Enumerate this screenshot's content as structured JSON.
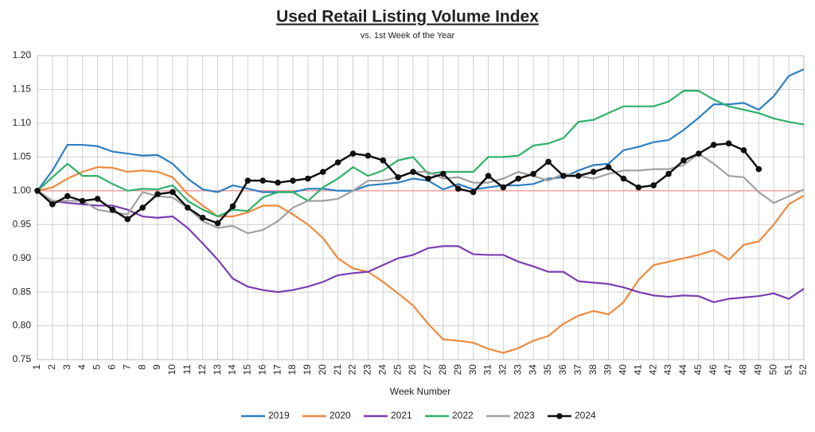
{
  "chart_data": {
    "type": "line",
    "title": "Used Retail Listing Volume Index",
    "subtitle": "vs. 1st Week of the Year",
    "x_label": "Week Number",
    "x": [
      1,
      2,
      3,
      4,
      5,
      6,
      7,
      8,
      9,
      10,
      11,
      12,
      13,
      14,
      15,
      16,
      17,
      18,
      19,
      20,
      21,
      22,
      23,
      24,
      25,
      26,
      27,
      28,
      29,
      30,
      31,
      32,
      33,
      34,
      35,
      36,
      37,
      38,
      39,
      40,
      41,
      42,
      43,
      44,
      45,
      46,
      47,
      48,
      49,
      50,
      51,
      52
    ],
    "xlim": [
      1,
      52
    ],
    "ylim": [
      0.75,
      1.2
    ],
    "yticks": [
      {
        "value": 0.75,
        "label": "0.75"
      },
      {
        "value": 0.8,
        "label": "0.80"
      },
      {
        "value": 0.85,
        "label": "0.85"
      },
      {
        "value": 0.9,
        "label": "0.90"
      },
      {
        "value": 0.95,
        "label": "0.95"
      },
      {
        "value": 1,
        "label": "1.00"
      },
      {
        "value": 1.05,
        "label": "1.05"
      },
      {
        "value": 1.1,
        "label": "1.10"
      },
      {
        "value": 1.15,
        "label": "1.15"
      },
      {
        "value": 1.2,
        "label": "1.20"
      }
    ],
    "grid": true,
    "legend": "bottom",
    "reference_line": {
      "value": 1,
      "color": "#f2a0a0"
    },
    "series": [
      {
        "name": "2019",
        "color": "#2e7fc0",
        "values": [
          1.0,
          1.03,
          1.068,
          1.068,
          1.066,
          1.058,
          1.055,
          1.052,
          1.053,
          1.04,
          1.018,
          1.002,
          0.998,
          1.008,
          1.003,
          0.998,
          0.998,
          0.998,
          1.003,
          1.003,
          1.0,
          1.0,
          1.008,
          1.01,
          1.012,
          1.018,
          1.015,
          1.002,
          1.01,
          1.002,
          1.005,
          1.008,
          1.008,
          1.01,
          1.018,
          1.02,
          1.03,
          1.038,
          1.04,
          1.06,
          1.065,
          1.072,
          1.075,
          1.09,
          1.108,
          1.128,
          1.128,
          1.13,
          1.12,
          1.14,
          1.17,
          1.18
        ]
      },
      {
        "name": "2020",
        "color": "#ed8a3f",
        "values": [
          1.0,
          1.005,
          1.018,
          1.028,
          1.035,
          1.034,
          1.028,
          1.03,
          1.028,
          1.02,
          0.995,
          0.978,
          0.962,
          0.962,
          0.968,
          0.978,
          0.978,
          0.965,
          0.95,
          0.93,
          0.9,
          0.885,
          0.88,
          0.865,
          0.848,
          0.83,
          0.803,
          0.78,
          0.778,
          0.775,
          0.766,
          0.76,
          0.767,
          0.778,
          0.785,
          0.803,
          0.815,
          0.822,
          0.817,
          0.835,
          0.868,
          0.89,
          0.895,
          0.9,
          0.905,
          0.912,
          0.898,
          0.92,
          0.925,
          0.95,
          0.98,
          0.993
        ]
      },
      {
        "name": "2021",
        "color": "#7b3fb0",
        "values": [
          1.0,
          0.985,
          0.982,
          0.98,
          0.978,
          0.978,
          0.972,
          0.962,
          0.96,
          0.962,
          0.945,
          0.922,
          0.898,
          0.87,
          0.858,
          0.853,
          0.85,
          0.853,
          0.858,
          0.865,
          0.875,
          0.878,
          0.88,
          0.89,
          0.9,
          0.905,
          0.915,
          0.918,
          0.918,
          0.906,
          0.905,
          0.905,
          0.895,
          0.888,
          0.88,
          0.88,
          0.866,
          0.864,
          0.862,
          0.857,
          0.85,
          0.845,
          0.843,
          0.845,
          0.844,
          0.835,
          0.84,
          0.842,
          0.844,
          0.848,
          0.84,
          0.855
        ]
      },
      {
        "name": "2022",
        "color": "#2fb06a",
        "values": [
          1.0,
          1.02,
          1.04,
          1.022,
          1.022,
          1.01,
          1.0,
          1.003,
          1.002,
          1.008,
          0.985,
          0.972,
          0.962,
          0.972,
          0.97,
          0.99,
          0.998,
          0.998,
          0.985,
          1.005,
          1.018,
          1.035,
          1.022,
          1.03,
          1.045,
          1.05,
          1.025,
          1.028,
          1.028,
          1.028,
          1.05,
          1.05,
          1.052,
          1.067,
          1.07,
          1.078,
          1.102,
          1.105,
          1.115,
          1.125,
          1.125,
          1.125,
          1.132,
          1.148,
          1.148,
          1.135,
          1.125,
          1.12,
          1.115,
          1.107,
          1.102,
          1.098
        ]
      },
      {
        "name": "2023",
        "color": "#a0a0a0",
        "values": [
          1.0,
          0.985,
          0.985,
          0.985,
          0.972,
          0.968,
          0.965,
          0.998,
          0.992,
          0.99,
          0.975,
          0.955,
          0.945,
          0.948,
          0.937,
          0.942,
          0.955,
          0.975,
          0.985,
          0.985,
          0.988,
          1.0,
          1.015,
          1.015,
          1.02,
          1.028,
          1.028,
          1.018,
          1.02,
          1.012,
          1.012,
          1.018,
          1.028,
          1.022,
          1.015,
          1.025,
          1.022,
          1.018,
          1.025,
          1.03,
          1.03,
          1.032,
          1.032,
          1.038,
          1.055,
          1.04,
          1.022,
          1.02,
          0.998,
          0.982,
          0.992,
          1.002
        ]
      },
      {
        "name": "2024",
        "color": "#111111",
        "markers": true,
        "values": [
          1.0,
          0.98,
          0.992,
          0.985,
          0.988,
          0.972,
          0.958,
          0.975,
          0.995,
          0.998,
          0.975,
          0.96,
          0.952,
          0.977,
          1.015,
          1.015,
          1.012,
          1.015,
          1.018,
          1.028,
          1.042,
          1.055,
          1.052,
          1.045,
          1.02,
          1.028,
          1.018,
          1.025,
          1.003,
          0.998,
          1.022,
          1.005,
          1.018,
          1.025,
          1.043,
          1.022,
          1.022,
          1.028,
          1.035,
          1.018,
          1.005,
          1.008,
          1.025,
          1.045,
          1.055,
          1.068,
          1.07,
          1.06,
          1.032,
          null,
          null,
          null
        ]
      }
    ]
  }
}
